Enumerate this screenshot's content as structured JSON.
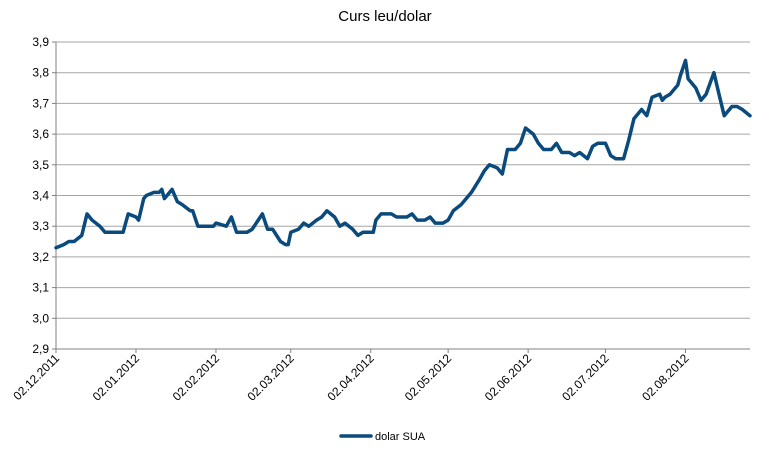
{
  "chart_data": {
    "type": "line",
    "title": "Curs leu/dolar",
    "xlabel": "",
    "ylabel": "",
    "ylim": [
      2.9,
      3.9
    ],
    "y_ticks": [
      "2,9",
      "3,0",
      "3,1",
      "3,2",
      "3,3",
      "3,4",
      "3,5",
      "3,6",
      "3,7",
      "3,8",
      "3,9"
    ],
    "x_ticks": [
      "02.12.2011",
      "02.01.2012",
      "02.02.2012",
      "02.03.2012",
      "02.04.2012",
      "02.05.2012",
      "02.06.2012",
      "02.07.2012",
      "02.08.2012"
    ],
    "x_start": "2011-12-02",
    "x_end": "2012-08-27",
    "grid": true,
    "legend_position": "bottom",
    "colors": {
      "series": "#0a4a7c",
      "grid": "#a6a6a6",
      "axis": "#808080"
    },
    "series": [
      {
        "name": "dolar SUA",
        "x": [
          "2011-12-02",
          "2011-12-05",
          "2011-12-07",
          "2011-12-09",
          "2011-12-12",
          "2011-12-14",
          "2011-12-16",
          "2011-12-19",
          "2011-12-21",
          "2011-12-23",
          "2011-12-26",
          "2011-12-28",
          "2011-12-30",
          "2012-01-02",
          "2012-01-03",
          "2012-01-05",
          "2012-01-06",
          "2012-01-09",
          "2012-01-11",
          "2012-01-12",
          "2012-01-13",
          "2012-01-16",
          "2012-01-18",
          "2012-01-20",
          "2012-01-23",
          "2012-01-24",
          "2012-01-26",
          "2012-01-27",
          "2012-01-30",
          "2012-02-01",
          "2012-02-02",
          "2012-02-06",
          "2012-02-08",
          "2012-02-10",
          "2012-02-13",
          "2012-02-14",
          "2012-02-16",
          "2012-02-20",
          "2012-02-22",
          "2012-02-24",
          "2012-02-27",
          "2012-02-29",
          "2012-03-01",
          "2012-03-02",
          "2012-03-05",
          "2012-03-07",
          "2012-03-09",
          "2012-03-12",
          "2012-03-14",
          "2012-03-16",
          "2012-03-19",
          "2012-03-21",
          "2012-03-23",
          "2012-03-26",
          "2012-03-28",
          "2012-03-30",
          "2012-04-02",
          "2012-04-03",
          "2012-04-04",
          "2012-04-06",
          "2012-04-10",
          "2012-04-12",
          "2012-04-16",
          "2012-04-18",
          "2012-04-20",
          "2012-04-23",
          "2012-04-25",
          "2012-04-27",
          "2012-04-30",
          "2012-05-02",
          "2012-05-04",
          "2012-05-07",
          "2012-05-09",
          "2012-05-11",
          "2012-05-14",
          "2012-05-16",
          "2012-05-18",
          "2012-05-21",
          "2012-05-23",
          "2012-05-25",
          "2012-05-28",
          "2012-05-30",
          "2012-06-01",
          "2012-06-04",
          "2012-06-06",
          "2012-06-08",
          "2012-06-11",
          "2012-06-13",
          "2012-06-15",
          "2012-06-18",
          "2012-06-20",
          "2012-06-22",
          "2012-06-25",
          "2012-06-27",
          "2012-06-29",
          "2012-07-02",
          "2012-07-04",
          "2012-07-06",
          "2012-07-09",
          "2012-07-11",
          "2012-07-13",
          "2012-07-16",
          "2012-07-18",
          "2012-07-20",
          "2012-07-23",
          "2012-07-24",
          "2012-07-25",
          "2012-07-27",
          "2012-07-30",
          "2012-07-31",
          "2012-08-02",
          "2012-08-03",
          "2012-08-06",
          "2012-08-08",
          "2012-08-10",
          "2012-08-13",
          "2012-08-15",
          "2012-08-17",
          "2012-08-20",
          "2012-08-22",
          "2012-08-24",
          "2012-08-27"
        ],
        "values": [
          3.23,
          3.24,
          3.25,
          3.25,
          3.27,
          3.34,
          3.32,
          3.3,
          3.28,
          3.28,
          3.28,
          3.28,
          3.34,
          3.33,
          3.32,
          3.39,
          3.4,
          3.41,
          3.41,
          3.42,
          3.39,
          3.42,
          3.38,
          3.37,
          3.35,
          3.35,
          3.3,
          3.3,
          3.3,
          3.3,
          3.31,
          3.3,
          3.33,
          3.28,
          3.28,
          3.28,
          3.29,
          3.34,
          3.29,
          3.29,
          3.25,
          3.24,
          3.24,
          3.28,
          3.29,
          3.31,
          3.3,
          3.32,
          3.33,
          3.35,
          3.33,
          3.3,
          3.31,
          3.29,
          3.27,
          3.28,
          3.28,
          3.28,
          3.32,
          3.34,
          3.34,
          3.33,
          3.33,
          3.34,
          3.32,
          3.32,
          3.33,
          3.31,
          3.31,
          3.32,
          3.35,
          3.37,
          3.39,
          3.41,
          3.45,
          3.48,
          3.5,
          3.49,
          3.47,
          3.55,
          3.55,
          3.57,
          3.62,
          3.6,
          3.57,
          3.55,
          3.55,
          3.57,
          3.54,
          3.54,
          3.53,
          3.54,
          3.52,
          3.56,
          3.57,
          3.57,
          3.53,
          3.52,
          3.52,
          3.58,
          3.65,
          3.68,
          3.66,
          3.72,
          3.73,
          3.71,
          3.72,
          3.73,
          3.76,
          3.79,
          3.84,
          3.78,
          3.75,
          3.71,
          3.73,
          3.8,
          3.73,
          3.66,
          3.69,
          3.69,
          3.68,
          3.66
        ]
      }
    ]
  }
}
